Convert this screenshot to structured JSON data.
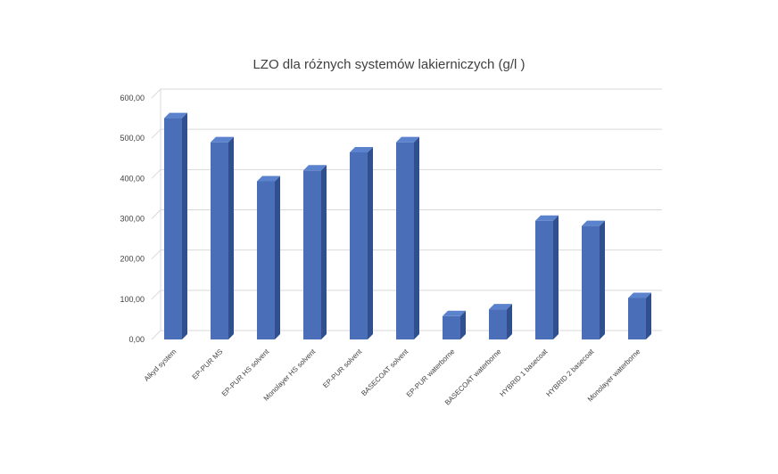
{
  "chart_data": {
    "type": "bar",
    "title": "LZO dla różnych systemów lakierniczych (g/l )",
    "xlabel": "",
    "ylabel": "",
    "ylim": [
      0,
      600
    ],
    "yticks": [
      0,
      100,
      200,
      300,
      400,
      500,
      600
    ],
    "ytick_labels": [
      "0,00",
      "100,00",
      "200,00",
      "300,00",
      "400,00",
      "500,00",
      "600,00"
    ],
    "grid": true,
    "style": "3d-column",
    "colors": {
      "bar_front": "#4a6fb8",
      "bar_side": "#2f4f8f",
      "bar_top": "#5b82cc",
      "grid": "#d9d9d9"
    },
    "categories": [
      "Alkyd system",
      "EP-PUR MS",
      "EP-PUR HS solvent",
      "Monolayer HS solvent",
      "EP-PUR solvent",
      "BASECOAT solvent",
      "EP-PUR waterborne",
      "BASECOAT waterborne",
      "HYBRID 1 basecoat",
      "HYBRID 2 basecoat",
      "Monolayer waterborne"
    ],
    "values": [
      550,
      490,
      393,
      420,
      465,
      490,
      58,
      75,
      295,
      282,
      103
    ]
  }
}
